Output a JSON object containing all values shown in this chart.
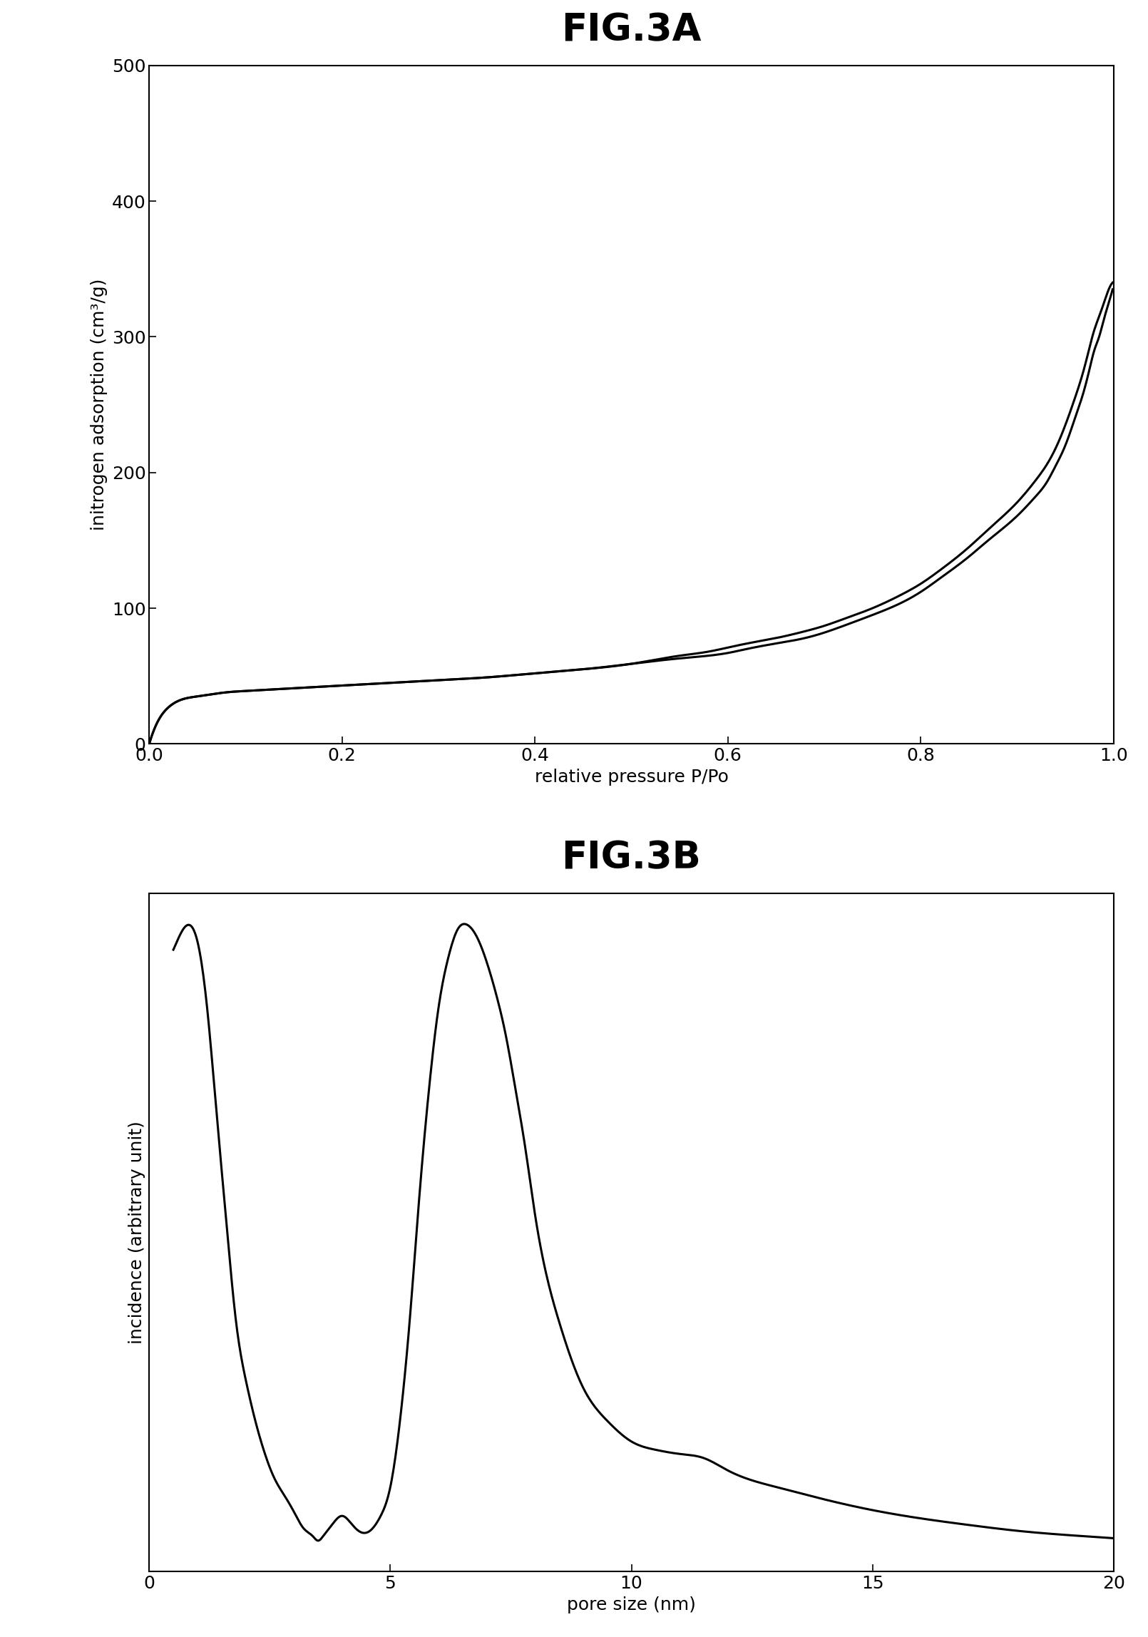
{
  "fig3a_title": "FIG.3A",
  "fig3b_title": "FIG.3B",
  "fig3a_xlabel": "relative pressure P/Po",
  "fig3a_ylabel": "initrogen adsorption (cm³/g)",
  "fig3b_xlabel": "pore size (nm)",
  "fig3b_ylabel": "incidence (arbitrary unit)",
  "fig3a_xlim": [
    0,
    1
  ],
  "fig3a_ylim": [
    0,
    500
  ],
  "fig3a_xticks": [
    0,
    0.2,
    0.4,
    0.6,
    0.8,
    1.0
  ],
  "fig3a_yticks": [
    0,
    100,
    200,
    300,
    400,
    500
  ],
  "fig3b_xlim": [
    0,
    20
  ],
  "fig3b_xticks": [
    0,
    5,
    10,
    15,
    20
  ],
  "background_color": "#ffffff",
  "line_color": "#000000",
  "title_fontsize": 38,
  "label_fontsize": 18,
  "tick_fontsize": 18
}
